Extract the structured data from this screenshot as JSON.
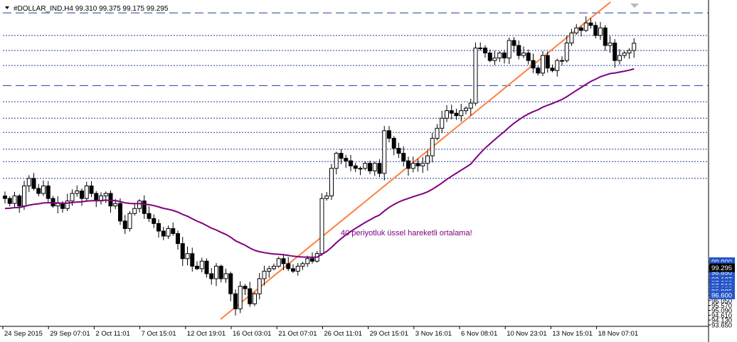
{
  "header": {
    "symbol_line": "#DOLLAR_IND,H4  99.310 99.375 99.175 99.295"
  },
  "annotation": {
    "text": "40 periyotluk üssel hareketli ortalama!"
  },
  "colors": {
    "candle": "#000000",
    "ema": "#800080",
    "trendline": "#FF7F3F",
    "level_line": "#1F3FA0",
    "current_price_bg": "#000000",
    "level_label_bg": "#2455C8"
  },
  "chart_data": {
    "type": "candlestick",
    "symbol": "#DOLLAR_IND",
    "timeframe": "H4",
    "ohlc_current": {
      "open": 99.31,
      "high": 99.375,
      "low": 99.175,
      "close": 99.295
    },
    "ylim": [
      93.65,
      100.1
    ],
    "y_ticks": [
      93.65,
      94.13,
      94.61,
      95.09,
      95.57,
      96.05,
      96.6,
      96.935,
      97.182,
      97.516,
      97.8,
      97.96,
      98.127,
      98.45,
      98.85,
      98.92,
      99.15,
      99.295,
      99.45,
      99.9
    ],
    "x_ticks": [
      "24 Sep 2015",
      "29 Sep 07:01",
      "2 Oct 11:01",
      "7 Oct 15:01",
      "12 Oct 19:01",
      "16 Oct 03:01",
      "21 Oct 07:01",
      "26 Oct 11:01",
      "29 Oct 15:01",
      "3 Nov 16:01",
      "6 Nov 08:01",
      "10 Nov 23:01",
      "13 Nov 15:01",
      "18 Nov 07:01"
    ],
    "levels": {
      "major": [
        99.9,
        98.45
      ],
      "minor": [
        99.45,
        99.15,
        98.85,
        98.127,
        97.8,
        97.516,
        97.182,
        96.935,
        96.6
      ]
    },
    "current_price": 99.295,
    "close_series": [
      96.2,
      96.1,
      96.25,
      96.05,
      96.45,
      96.6,
      96.4,
      96.3,
      96.45,
      96.2,
      96.05,
      96.1,
      96.0,
      96.15,
      96.3,
      96.35,
      96.2,
      96.45,
      96.3,
      96.15,
      96.25,
      96.3,
      96.05,
      96.1,
      95.75,
      95.6,
      95.9,
      96.0,
      96.15,
      95.9,
      95.8,
      95.7,
      95.55,
      95.45,
      95.6,
      95.5,
      95.3,
      95.0,
      95.1,
      94.85,
      94.8,
      94.95,
      94.7,
      94.6,
      94.85,
      94.6,
      94.7,
      94.3,
      94.0,
      94.45,
      94.4,
      94.1,
      94.3,
      94.6,
      94.75,
      94.8,
      94.85,
      95.0,
      94.9,
      94.8,
      94.75,
      94.85,
      94.9,
      95.0,
      94.95,
      95.1,
      96.2,
      96.25,
      96.8,
      97.1,
      97.0,
      96.95,
      96.85,
      96.8,
      96.8,
      96.9,
      96.75,
      96.9,
      96.7,
      97.55,
      97.4,
      97.2,
      97.1,
      96.95,
      96.8,
      96.9,
      96.85,
      96.9,
      97.05,
      97.4,
      97.6,
      97.8,
      97.95,
      97.9,
      97.85,
      97.95,
      98.0,
      98.1,
      99.2,
      99.2,
      99.1,
      98.95,
      99.0,
      99.1,
      99.0,
      99.35,
      99.25,
      99.05,
      99.1,
      98.95,
      98.8,
      98.7,
      99.05,
      98.8,
      98.75,
      98.95,
      98.95,
      99.3,
      99.5,
      99.6,
      99.55,
      99.7,
      99.65,
      99.45,
      99.6,
      99.25,
      99.3,
      98.95,
      99.05,
      99.1,
      99.15,
      99.295
    ]
  }
}
